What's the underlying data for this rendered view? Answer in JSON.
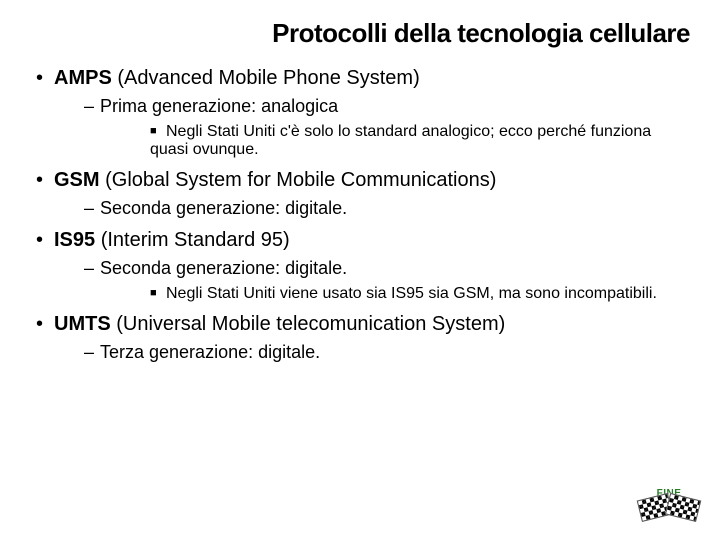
{
  "colors": {
    "text": "#000000",
    "background": "#ffffff",
    "fine_label": "#2a7a2a"
  },
  "typography": {
    "family": "Verdana",
    "title_size_pt": 26,
    "l1_size_pt": 20,
    "l2_size_pt": 18,
    "l3_size_pt": 16
  },
  "title": "Protocolli della tecnologia cellulare",
  "items": [
    {
      "acronym": "AMPS",
      "expansion": "(Advanced Mobile Phone System)",
      "sub": "Prima generazione: analogica",
      "detail": "Negli Stati Uniti c'è solo lo standard analogico; ecco perché funziona quasi ovunque."
    },
    {
      "acronym": "GSM",
      "expansion": "(Global System for Mobile Communications)",
      "sub": "Seconda generazione: digitale."
    },
    {
      "acronym": "IS95",
      "expansion": "(Interim Standard 95)",
      "sub": "Seconda generazione: digitale.",
      "detail": "Negli Stati Uniti viene usato sia IS95 sia GSM, ma sono incompatibili."
    },
    {
      "acronym": "UMTS",
      "expansion": "(Universal Mobile telecomunication System)",
      "sub": "Terza generazione: digitale."
    }
  ],
  "fine_label": "FINE"
}
